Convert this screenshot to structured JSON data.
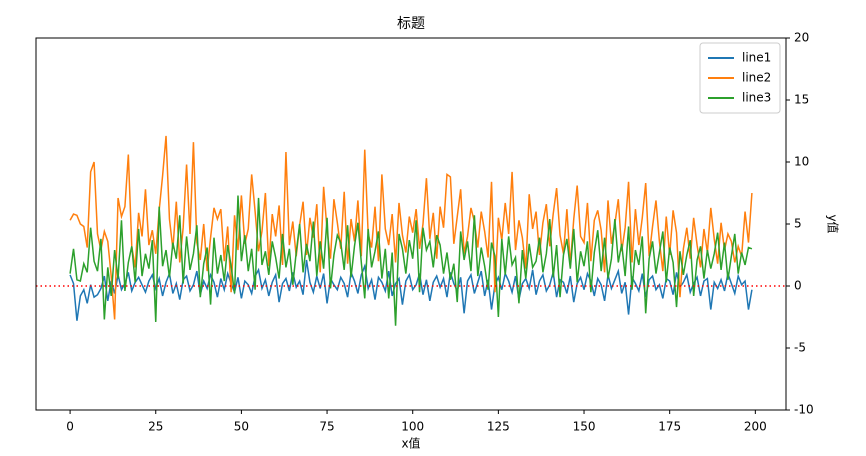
{
  "chart_data": {
    "type": "line",
    "title": "标题",
    "x_label": "x值",
    "y_label": "y值",
    "x": [
      0,
      1,
      2,
      3,
      4,
      5,
      6,
      7,
      8,
      9,
      10,
      11,
      12,
      13,
      14,
      15,
      16,
      17,
      18,
      19,
      20,
      21,
      22,
      23,
      24,
      25,
      26,
      27,
      28,
      29,
      30,
      31,
      32,
      33,
      34,
      35,
      36,
      37,
      38,
      39,
      40,
      41,
      42,
      43,
      44,
      45,
      46,
      47,
      48,
      49,
      50,
      51,
      52,
      53,
      54,
      55,
      56,
      57,
      58,
      59,
      60,
      61,
      62,
      63,
      64,
      65,
      66,
      67,
      68,
      69,
      70,
      71,
      72,
      73,
      74,
      75,
      76,
      77,
      78,
      79,
      80,
      81,
      82,
      83,
      84,
      85,
      86,
      87,
      88,
      89,
      90,
      91,
      92,
      93,
      94,
      95,
      96,
      97,
      98,
      99,
      100,
      101,
      102,
      103,
      104,
      105,
      106,
      107,
      108,
      109,
      110,
      111,
      112,
      113,
      114,
      115,
      116,
      117,
      118,
      119,
      120,
      121,
      122,
      123,
      124,
      125,
      126,
      127,
      128,
      129,
      130,
      131,
      132,
      133,
      134,
      135,
      136,
      137,
      138,
      139,
      140,
      141,
      142,
      143,
      144,
      145,
      146,
      147,
      148,
      149,
      150,
      151,
      152,
      153,
      154,
      155,
      156,
      157,
      158,
      159,
      160,
      161,
      162,
      163,
      164,
      165,
      166,
      167,
      168,
      169,
      170,
      171,
      172,
      173,
      174,
      175,
      176,
      177,
      178,
      179,
      180,
      181,
      182,
      183,
      184,
      185,
      186,
      187,
      188,
      189,
      190,
      191,
      192,
      193,
      194,
      195,
      196,
      197,
      198,
      199
    ],
    "series": [
      {
        "name": "line1",
        "color": "#1f77b4",
        "values": [
          0.9,
          0.2,
          -2.8,
          -0.8,
          -0.3,
          -1.4,
          0.1,
          -0.9,
          -0.7,
          -0.2,
          0.8,
          -1.2,
          0.4,
          -0.6,
          0.9,
          -0.3,
          0.2,
          1.1,
          -0.4,
          0.3,
          0.7,
          0.1,
          -0.5,
          0.4,
          0.9,
          -0.2,
          0.6,
          -0.8,
          0.3,
          1.0,
          -0.6,
          0.2,
          -1.1,
          0.5,
          0.8,
          -0.4,
          0.1,
          1.2,
          -0.7,
          0.4,
          -0.2,
          0.9,
          0.3,
          -0.9,
          0.6,
          -0.3,
          1.0,
          0.2,
          -0.5,
          0.7,
          -1.0,
          0.4,
          0.1,
          -0.6,
          0.8,
          1.3,
          -0.2,
          0.5,
          -0.8,
          0.3,
          0.9,
          -1.3,
          0.2,
          0.6,
          -0.4,
          1.1,
          -0.1,
          0.4,
          -0.7,
          2.1,
          0.3,
          -0.5,
          0.8,
          -0.2,
          1.0,
          -1.4,
          0.6,
          0.1,
          -0.3,
          0.7,
          0.2,
          -0.9,
          1.1,
          0.4,
          -0.6,
          0.9,
          1.6,
          -0.2,
          0.5,
          -1.1,
          0.7,
          0.3,
          -0.4,
          1.2,
          -0.8,
          0.2,
          0.6,
          -1.5,
          0.4,
          0.9,
          -0.3,
          0.1,
          1.0,
          -0.7,
          0.5,
          -1.2,
          0.3,
          0.8,
          -0.1,
          0.6,
          -0.9,
          1.1,
          0.2,
          -0.4,
          0.7,
          -2.2,
          0.4,
          0.9,
          -0.6,
          0.3,
          1.2,
          -0.8,
          0.5,
          -1.9,
          0.1,
          0.7,
          -0.3,
          1.0,
          0.4,
          -0.5,
          0.8,
          -1.1,
          0.2,
          0.6,
          -0.2,
          1.3,
          -0.7,
          0.4,
          0.9,
          -0.4,
          0.1,
          1.1,
          -0.9,
          0.5,
          0.3,
          -0.6,
          0.8,
          -1.3,
          0.2,
          0.7,
          -0.3,
          1.0,
          0.4,
          -0.8,
          0.6,
          0.1,
          -1.2,
          0.9,
          -0.2,
          0.5,
          1.2,
          -0.6,
          0.3,
          -2.3,
          0.7,
          0.2,
          -0.4,
          1.0,
          -0.9,
          0.5,
          0.8,
          -0.3,
          0.1,
          -1.0,
          0.6,
          0.4,
          -0.7,
          1.1,
          -0.1,
          0.3,
          0.9,
          -0.5,
          0.2,
          0.7,
          -0.8,
          0.4,
          0.6,
          -1.9,
          0.3,
          -0.2,
          0.5,
          -0.4,
          1.0,
          0.2,
          -0.6,
          0.8,
          0.1,
          0.4,
          -1.9,
          -0.3
        ]
      },
      {
        "name": "line2",
        "color": "#ff7f0e",
        "values": [
          5.3,
          5.8,
          5.7,
          5.0,
          4.8,
          3.1,
          9.2,
          10.0,
          4.2,
          2.9,
          4.4,
          3.6,
          0.8,
          -2.7,
          7.1,
          5.6,
          6.4,
          10.6,
          3.2,
          1.5,
          5.9,
          4.0,
          7.8,
          3.3,
          4.5,
          2.6,
          6.1,
          8.9,
          12.1,
          5.4,
          3.0,
          6.8,
          1.9,
          4.7,
          9.8,
          4.2,
          11.6,
          3.5,
          2.1,
          5.0,
          1.2,
          3.9,
          6.3,
          5.4,
          6.2,
          2.0,
          4.8,
          -0.5,
          5.7,
          2.9,
          7.3,
          3.4,
          4.6,
          9.0,
          6.0,
          2.8,
          4.4,
          7.5,
          1.6,
          5.8,
          4.0,
          6.5,
          1.7,
          10.8,
          3.3,
          5.2,
          2.4,
          4.9,
          6.8,
          2.5,
          5.5,
          3.9,
          6.6,
          1.1,
          8.0,
          4.5,
          2.2,
          7.0,
          5.1,
          3.0,
          7.6,
          1.8,
          5.4,
          3.6,
          6.9,
          2.4,
          11.0,
          4.2,
          3.1,
          6.4,
          2.0,
          9.0,
          4.6,
          3.3,
          5.8,
          1.9,
          6.7,
          4.1,
          2.7,
          5.6,
          4.3,
          6.2,
          3.0,
          5.0,
          8.7,
          3.8,
          5.9,
          2.2,
          6.4,
          4.7,
          9.0,
          8.8,
          3.4,
          5.6,
          7.8,
          2.6,
          4.0,
          6.3,
          5.2,
          3.1,
          6.0,
          4.4,
          2.3,
          8.4,
          -0.5,
          5.5,
          3.7,
          6.7,
          4.2,
          9.2,
          2.9,
          5.3,
          3.9,
          1.4,
          7.4,
          4.6,
          6.0,
          2.5,
          5.1,
          6.6,
          3.2,
          5.8,
          7.9,
          4.1,
          2.6,
          6.2,
          1.7,
          5.4,
          8.1,
          4.0,
          3.5,
          6.7,
          2.0,
          5.3,
          6.1,
          4.5,
          1.1,
          6.9,
          3.4,
          5.0,
          7.0,
          2.8,
          4.7,
          8.4,
          1.9,
          6.2,
          3.3,
          5.5,
          8.3,
          2.4,
          4.8,
          6.9,
          3.6,
          1.2,
          5.6,
          2.5,
          6.1,
          4.3,
          -0.9,
          3.0,
          4.7,
          2.2,
          5.5,
          3.3,
          1.5,
          4.6,
          2.7,
          6.3,
          3.8,
          1.8,
          5.1,
          2.9,
          4.2,
          3.6,
          1.9,
          3.2,
          2.4,
          6.0,
          3.5,
          7.5
        ]
      },
      {
        "name": "line3",
        "color": "#2ca02c",
        "values": [
          1.0,
          3.0,
          0.5,
          0.4,
          1.8,
          1.1,
          4.7,
          2.0,
          1.2,
          3.8,
          -2.7,
          1.5,
          -0.8,
          2.9,
          0.6,
          5.3,
          -0.4,
          1.9,
          3.2,
          0.3,
          4.6,
          0.8,
          2.6,
          1.4,
          3.7,
          -2.9,
          6.4,
          1.6,
          2.9,
          0.7,
          3.5,
          2.2,
          5.7,
          0.2,
          4.0,
          1.3,
          2.6,
          4.9,
          -0.9,
          1.8,
          3.1,
          -1.5,
          3.9,
          1.0,
          2.5,
          0.4,
          3.3,
          1.6,
          -0.6,
          7.3,
          2.0,
          4.1,
          1.2,
          3.0,
          -0.3,
          7.1,
          1.7,
          2.8,
          0.9,
          3.6,
          2.3,
          0.6,
          4.2,
          1.5,
          3.0,
          0.1,
          2.7,
          5.0,
          1.1,
          3.4,
          2.0,
          5.2,
          0.8,
          3.6,
          1.4,
          5.5,
          -0.2,
          2.5,
          4.1,
          3.5,
          1.3,
          4.9,
          0.7,
          3.2,
          5.1,
          1.9,
          -1.0,
          4.6,
          1.5,
          2.8,
          4.4,
          0.6,
          3.0,
          -1.0,
          2.7,
          -3.2,
          4.2,
          3.0,
          1.0,
          3.7,
          2.2,
          5.3,
          -0.5,
          4.7,
          2.9,
          3.6,
          1.5,
          4.1,
          3.3,
          1.0,
          2.7,
          0.5,
          1.8,
          -1.3,
          4.4,
          2.1,
          3.6,
          1.2,
          5.7,
          0.8,
          3.1,
          1.6,
          -0.3,
          3.5,
          2.4,
          -2.5,
          3.8,
          0.9,
          4.0,
          1.7,
          2.3,
          -1.4,
          2.9,
          0.6,
          3.4,
          1.5,
          2.0,
          3.9,
          1.1,
          2.6,
          5.4,
          0.7,
          3.3,
          -0.9,
          2.5,
          3.8,
          1.4,
          4.6,
          0.3,
          2.8,
          1.6,
          3.6,
          -0.5,
          2.7,
          4.5,
          1.2,
          3.9,
          0.6,
          2.2,
          5.4,
          1.9,
          3.4,
          0.8,
          4.8,
          -0.3,
          2.9,
          1.7,
          4.0,
          -2.2,
          2.2,
          3.6,
          1.0,
          2.7,
          4.4,
          0.3,
          3.1,
          1.9,
          -1.7,
          2.8,
          0.9,
          2.5,
          3.7,
          -0.8,
          2.1,
          3.2,
          0.6,
          2.9,
          1.4,
          2.6,
          4.3,
          1.3,
          3.5,
          0.5,
          2.4,
          4.2,
          1.0,
          2.7,
          1.7,
          3.1,
          3.0
        ]
      }
    ],
    "xlim": [
      -9.95,
      208.95
    ],
    "xticks": [
      0,
      25,
      50,
      75,
      100,
      125,
      150,
      175,
      200
    ],
    "ylim": [
      -10,
      20
    ],
    "yticks": [
      -10,
      -5,
      0,
      5,
      10,
      15,
      20
    ],
    "y_axis_side": "right",
    "legend": "upper right",
    "hline": {
      "y": 0,
      "color": "red",
      "style": "dotted"
    }
  }
}
